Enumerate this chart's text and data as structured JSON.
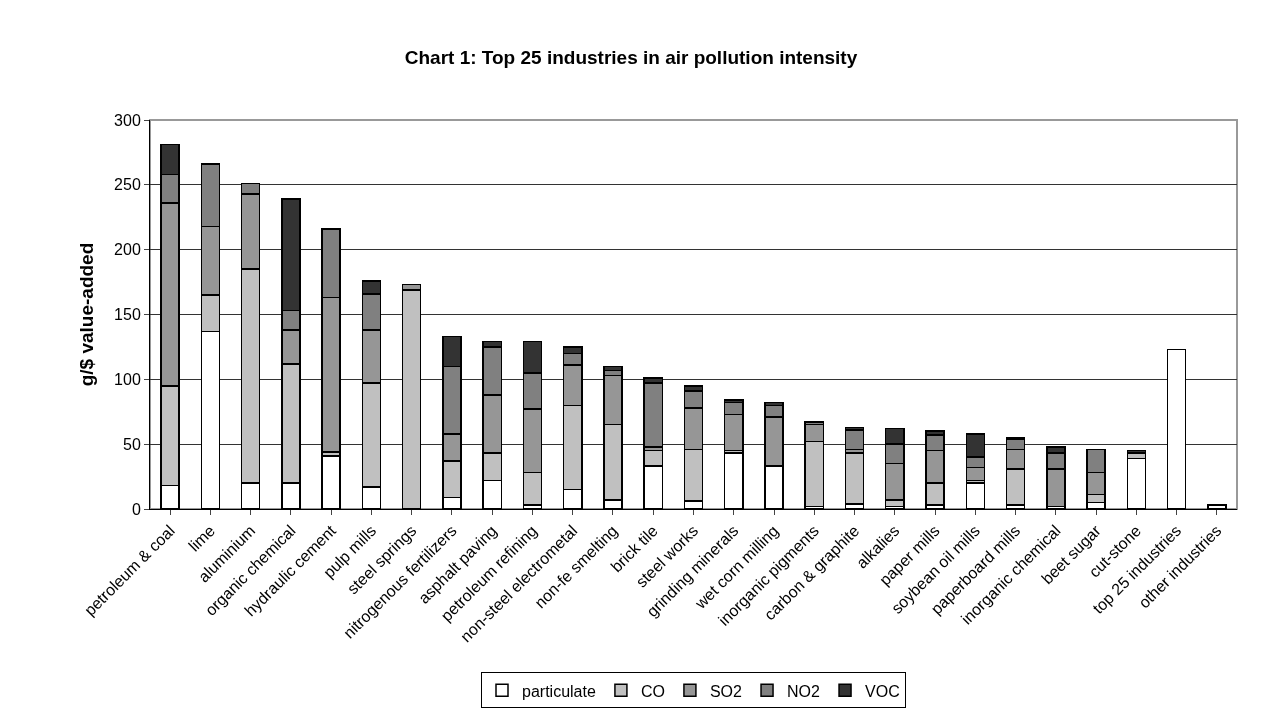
{
  "chart_data": {
    "type": "bar",
    "title": "Chart 1: Top 25 industries in air pollution intensity",
    "ylabel": "g/$ value-added",
    "categories": [
      "petroleum & coal",
      "lime",
      "aluminium",
      "organic chemical",
      "hydraulic cement",
      "pulp mills",
      "steel springs",
      "nitrogenous fertilizers",
      "asphalt paving",
      "petroleum refining",
      "non-steel electrometal",
      "non-fe smelting",
      "brick tile",
      "steel works",
      "grinding minerals",
      "wet corn milling",
      "inorganic pigments",
      "carbon & graphite",
      "alkalies",
      "paper mills",
      "soybean oil mills",
      "paperboard mills",
      "inorganic chemical",
      "beet sugar",
      "cut-stone",
      "top 25 industries",
      "other industries"
    ],
    "stacked": true,
    "ylim": [
      0,
      300
    ],
    "yticks": [
      0,
      50,
      100,
      150,
      200,
      250,
      300
    ],
    "grid": "y",
    "legend": "bottom",
    "series": [
      {
        "name": "particulate",
        "color": "#ffffff",
        "values": [
          18,
          137,
          20,
          20,
          41,
          17,
          null,
          9,
          22,
          3,
          15,
          7,
          33,
          6,
          43,
          33,
          2,
          4,
          2,
          3,
          20,
          3,
          2,
          5,
          39,
          123,
          3
        ]
      },
      {
        "name": "CO",
        "color": "#c0c0c0",
        "values": [
          77,
          28,
          165,
          92,
          3,
          80,
          169,
          28,
          21,
          25,
          65,
          58,
          12,
          40,
          2,
          0,
          50,
          39,
          5,
          17,
          2,
          28,
          0,
          6,
          4,
          0,
          0
        ]
      },
      {
        "name": "SO2",
        "color": "#969696",
        "values": [
          141,
          53,
          58,
          26,
          119,
          41,
          4,
          21,
          45,
          49,
          31,
          38,
          3,
          32,
          28,
          38,
          13,
          3,
          28,
          25,
          10,
          15,
          29,
          17,
          0,
          0,
          0
        ]
      },
      {
        "name": "NO2",
        "color": "#808080",
        "values": [
          22,
          48,
          8,
          15,
          53,
          28,
          0,
          52,
          37,
          28,
          9,
          4,
          49,
          13,
          9,
          9,
          2,
          15,
          15,
          12,
          8,
          8,
          12,
          18,
          0,
          0,
          0
        ]
      },
      {
        "name": "VOC",
        "color": "#333333",
        "values": [
          23,
          0,
          0,
          86,
          0,
          10,
          0,
          23,
          4,
          24,
          5,
          3,
          4,
          4,
          2,
          2,
          0,
          2,
          12,
          3,
          18,
          1,
          5,
          0,
          2,
          0,
          0
        ]
      }
    ]
  }
}
